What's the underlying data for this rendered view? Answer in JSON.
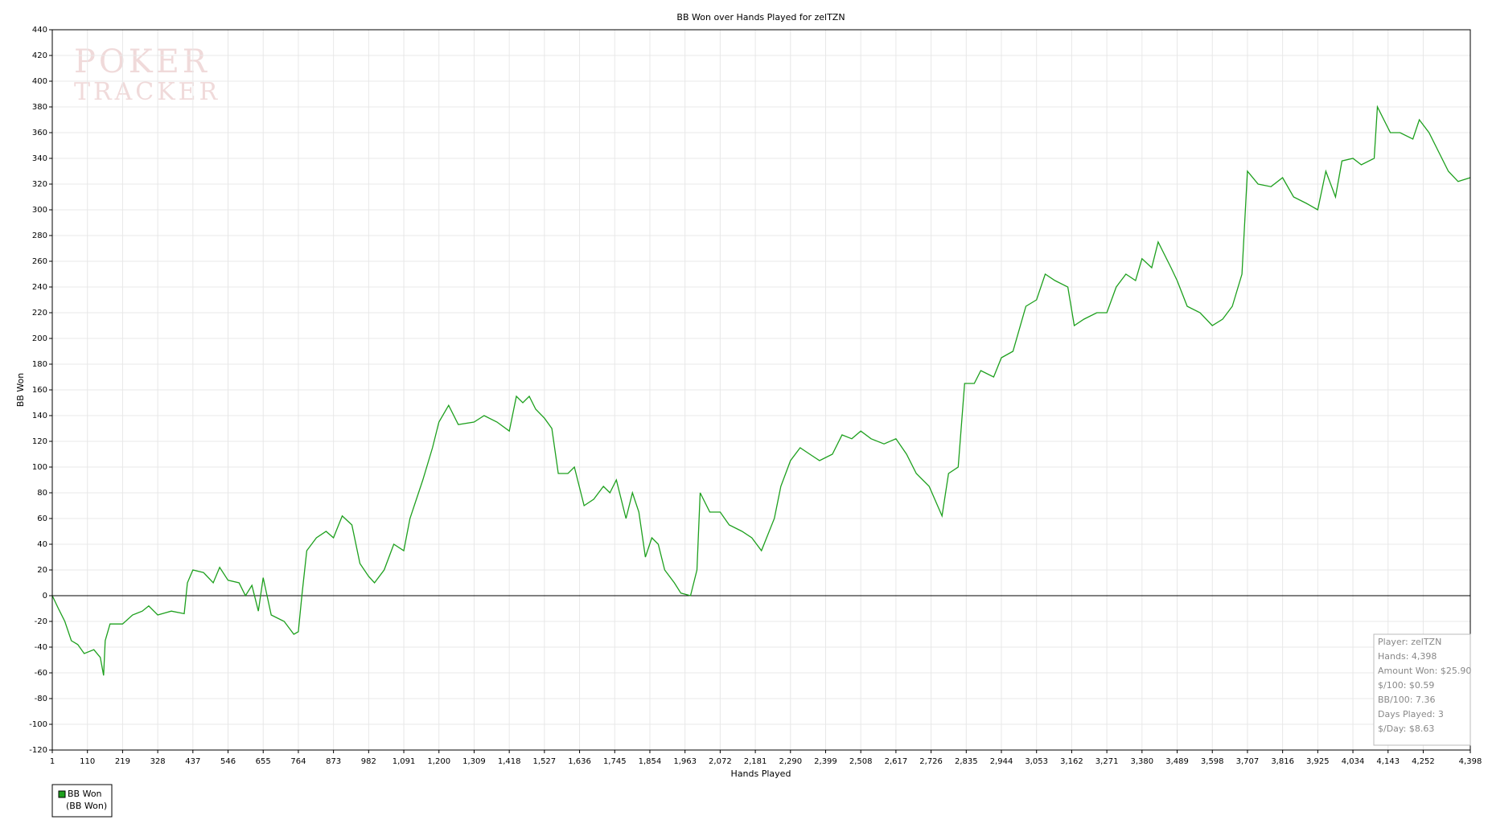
{
  "chart_data": {
    "type": "line",
    "title": "BB Won over Hands Played for zelTZN",
    "x_label": "Hands Played",
    "y_label": "BB Won",
    "watermark": [
      "POKER",
      "TRACKER"
    ],
    "xlim": [
      1,
      4398
    ],
    "ylim": [
      -120,
      440
    ],
    "xticks": [
      1,
      110,
      219,
      328,
      437,
      546,
      655,
      764,
      873,
      982,
      {
        "value": 1091,
        "label": "1,091"
      },
      {
        "value": 1200,
        "label": "1,200"
      },
      {
        "value": 1309,
        "label": "1,309"
      },
      {
        "value": 1418,
        "label": "1,418"
      },
      {
        "value": 1527,
        "label": "1,527"
      },
      {
        "value": 1636,
        "label": "1,636"
      },
      {
        "value": 1745,
        "label": "1,745"
      },
      {
        "value": 1854,
        "label": "1,854"
      },
      {
        "value": 1963,
        "label": "1,963"
      },
      {
        "value": 2072,
        "label": "2,072"
      },
      {
        "value": 2181,
        "label": "2,181"
      },
      {
        "value": 2290,
        "label": "2,290"
      },
      {
        "value": 2399,
        "label": "2,399"
      },
      {
        "value": 2508,
        "label": "2,508"
      },
      {
        "value": 2617,
        "label": "2,617"
      },
      {
        "value": 2726,
        "label": "2,726"
      },
      {
        "value": 2835,
        "label": "2,835"
      },
      {
        "value": 2944,
        "label": "2,944"
      },
      {
        "value": 3053,
        "label": "3,053"
      },
      {
        "value": 3162,
        "label": "3,162"
      },
      {
        "value": 3271,
        "label": "3,271"
      },
      {
        "value": 3380,
        "label": "3,380"
      },
      {
        "value": 3489,
        "label": "3,489"
      },
      {
        "value": 3598,
        "label": "3,598"
      },
      {
        "value": 3707,
        "label": "3,707"
      },
      {
        "value": 3816,
        "label": "3,816"
      },
      {
        "value": 3925,
        "label": "3,925"
      },
      {
        "value": 4034,
        "label": "4,034"
      },
      {
        "value": 4143,
        "label": "4,143"
      },
      {
        "value": 4252,
        "label": "4,252"
      },
      {
        "value": 4398,
        "label": "4,398"
      }
    ],
    "yticks": [
      -120,
      -100,
      -80,
      -60,
      -40,
      -20,
      0,
      20,
      40,
      60,
      80,
      100,
      120,
      140,
      160,
      180,
      200,
      220,
      240,
      260,
      280,
      300,
      320,
      340,
      360,
      380,
      400,
      420,
      440
    ],
    "grid": true,
    "x": [
      1,
      20,
      40,
      60,
      80,
      100,
      130,
      150,
      160,
      165,
      180,
      219,
      250,
      280,
      300,
      328,
      370,
      410,
      420,
      437,
      470,
      500,
      520,
      546,
      580,
      600,
      620,
      640,
      655,
      680,
      720,
      750,
      764,
      775,
      790,
      820,
      850,
      873,
      900,
      930,
      955,
      982,
      1000,
      1030,
      1060,
      1091,
      1110,
      1150,
      1180,
      1200,
      1230,
      1260,
      1309,
      1340,
      1380,
      1418,
      1440,
      1460,
      1480,
      1500,
      1527,
      1550,
      1570,
      1600,
      1620,
      1650,
      1680,
      1710,
      1730,
      1750,
      1780,
      1800,
      1820,
      1840,
      1860,
      1880,
      1900,
      1930,
      1950,
      1980,
      2000,
      2010,
      2040,
      2072,
      2100,
      2140,
      2170,
      2200,
      2240,
      2260,
      2290,
      2320,
      2350,
      2380,
      2420,
      2450,
      2480,
      2508,
      2540,
      2580,
      2617,
      2650,
      2680,
      2720,
      2760,
      2780,
      2810,
      2830,
      2860,
      2880,
      2920,
      2944,
      2980,
      3020,
      3053,
      3080,
      3110,
      3150,
      3170,
      3200,
      3240,
      3271,
      3300,
      3330,
      3360,
      3380,
      3410,
      3430,
      3470,
      3489,
      3520,
      3560,
      3598,
      3630,
      3660,
      3690,
      3707,
      3740,
      3780,
      3816,
      3850,
      3890,
      3925,
      3950,
      3980,
      4000,
      4034,
      4060,
      4100,
      4110,
      4150,
      4180,
      4220,
      4240,
      4270,
      4300,
      4330,
      4360,
      4398
    ],
    "series": [
      {
        "name": "BB Won",
        "legend_note": "(BB Won)",
        "color": "#1ea01e",
        "values": [
          0,
          -10,
          -20,
          -35,
          -38,
          -45,
          -42,
          -48,
          -62,
          -35,
          -22,
          -22,
          -15,
          -12,
          -8,
          -15,
          -12,
          -14,
          10,
          20,
          18,
          10,
          22,
          12,
          10,
          0,
          8,
          -12,
          14,
          -15,
          -20,
          -30,
          -28,
          0,
          35,
          45,
          50,
          45,
          62,
          55,
          25,
          15,
          10,
          20,
          40,
          35,
          60,
          90,
          115,
          135,
          148,
          133,
          135,
          140,
          135,
          128,
          155,
          150,
          155,
          145,
          138,
          130,
          95,
          95,
          100,
          70,
          75,
          85,
          80,
          90,
          60,
          80,
          65,
          30,
          45,
          40,
          20,
          10,
          2,
          0,
          20,
          80,
          65,
          65,
          55,
          50,
          45,
          35,
          60,
          85,
          105,
          115,
          110,
          105,
          110,
          125,
          122,
          128,
          122,
          118,
          122,
          110,
          95,
          85,
          62,
          95,
          100,
          165,
          165,
          175,
          170,
          185,
          190,
          225,
          230,
          250,
          245,
          240,
          210,
          215,
          220,
          220,
          240,
          250,
          245,
          262,
          255,
          275,
          255,
          245,
          225,
          220,
          210,
          215,
          225,
          250,
          330,
          320,
          318,
          325,
          310,
          305,
          300,
          330,
          310,
          338,
          340,
          335,
          340,
          380,
          360,
          360,
          355,
          370,
          360,
          345,
          330,
          322,
          325
        ]
      }
    ],
    "info": [
      "Player: zelTZN",
      "Hands: 4,398",
      "Amount Won: $25.90",
      "$/100: $0.59",
      "BB/100: 7.36",
      "Days Played: 3",
      "$/Day: $8.63"
    ]
  }
}
